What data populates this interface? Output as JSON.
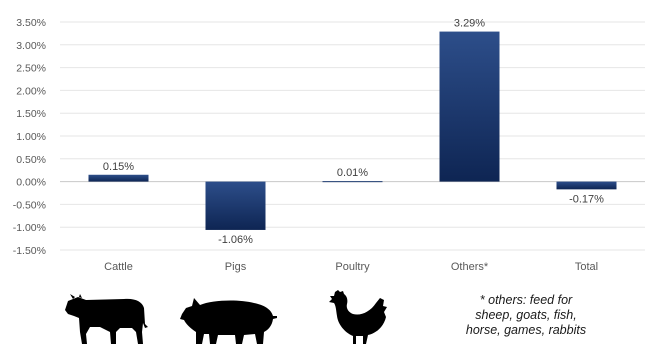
{
  "chart_data": {
    "type": "bar",
    "title": "",
    "xlabel": "",
    "ylabel": "",
    "categories": [
      "Cattle",
      "Pigs",
      "Poultry",
      "Others*",
      "Total"
    ],
    "values": [
      0.15,
      -1.06,
      0.01,
      3.29,
      -0.17
    ],
    "data_labels": [
      "0.15%",
      "-1.06%",
      "0.01%",
      "3.29%",
      "-0.17%"
    ],
    "ylim": [
      -1.5,
      3.5
    ],
    "yticks": [
      3.5,
      3.0,
      2.5,
      2.0,
      1.5,
      1.0,
      0.5,
      0.0,
      -0.5,
      -1.0,
      -1.5
    ],
    "ytick_labels": [
      "3.50%",
      "3.00%",
      "2.50%",
      "2.00%",
      "1.50%",
      "1.00%",
      "0.50%",
      "0.00%",
      "-0.50%",
      "-1.00%",
      "-1.50%"
    ],
    "grid": true,
    "legend": "none",
    "bar_color_top": "#2d4e8a",
    "bar_color_bottom": "#0e2553",
    "footnote_lines": [
      "* others: feed for",
      "sheep, goats, fish,",
      "horse, games, rabbits"
    ],
    "icons": [
      "cow-icon",
      "pig-icon",
      "hen-icon"
    ]
  }
}
